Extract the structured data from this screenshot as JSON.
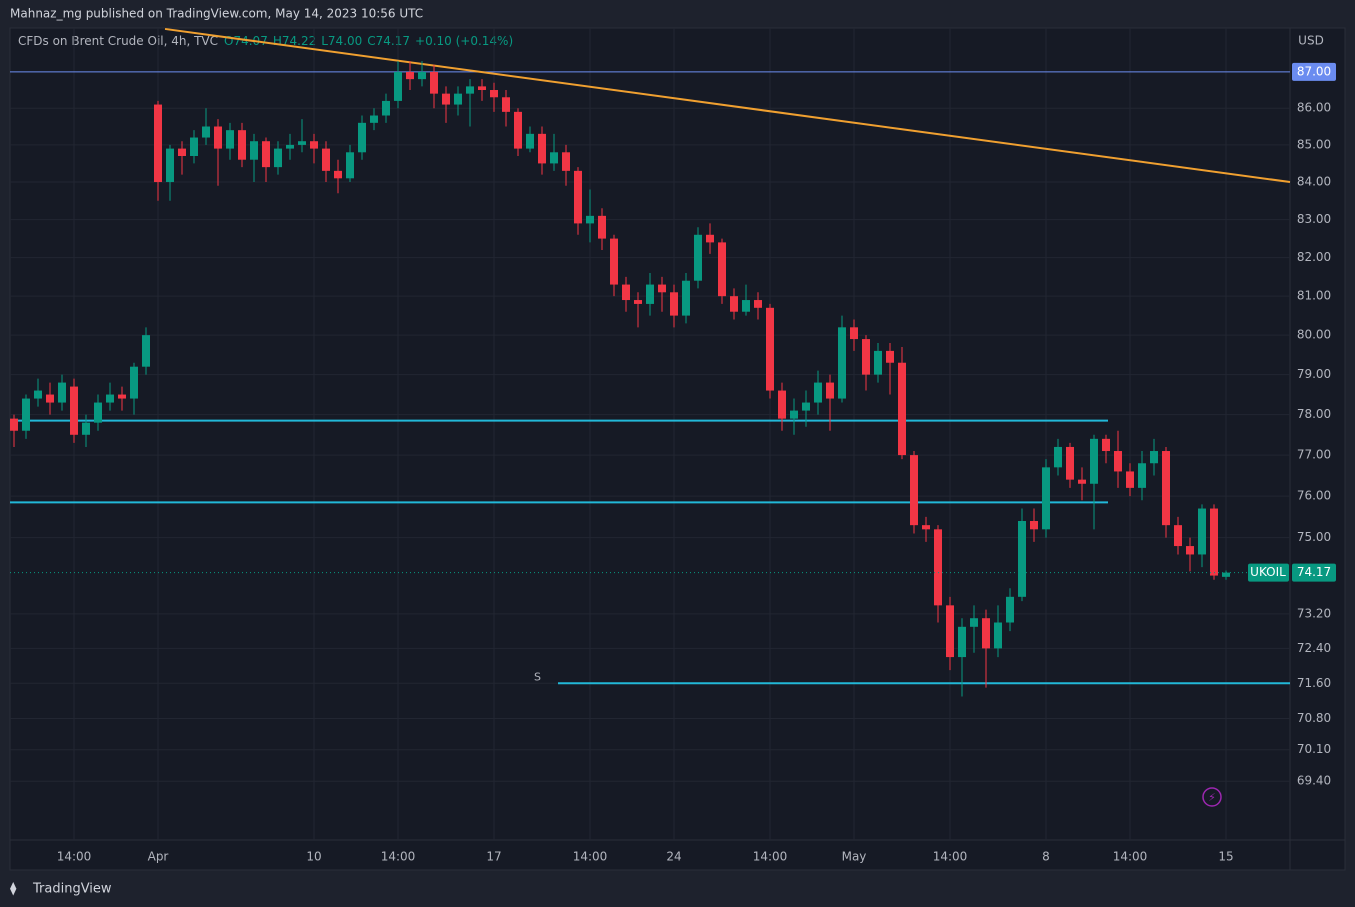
{
  "header": {
    "published": "Mahnaz_mg published on TradingView.com, May 14, 2023 10:56 UTC",
    "footer": "TradingView"
  },
  "chart_data": {
    "type": "candlestick",
    "title": "CFDs on Brent Crude Oil, 4h, TVC",
    "legend_values": [
      "O74.07",
      "H74.22",
      "L74.00",
      "C74.17",
      "+0.10 (+0.14%)"
    ],
    "currency": "USD",
    "symbol": "UKOIL",
    "categories": [
      null,
      null,
      null,
      null,
      null,
      "14:00",
      null,
      null,
      null,
      null,
      null,
      null,
      "Apr",
      null,
      null,
      null,
      null,
      null,
      null,
      null,
      null,
      null,
      null,
      null,
      null,
      "10",
      null,
      null,
      null,
      null,
      null,
      null,
      "14:00",
      null,
      null,
      null,
      null,
      null,
      null,
      null,
      "17",
      null,
      null,
      null,
      null,
      null,
      null,
      null,
      "14:00",
      null,
      null,
      null,
      null,
      null,
      null,
      "24",
      null,
      null,
      null,
      null,
      null,
      null,
      null,
      "14:00",
      null,
      null,
      null,
      null,
      null,
      null,
      "May",
      null,
      null,
      null,
      null,
      null,
      null,
      null,
      "14:00",
      null,
      null,
      null,
      null,
      null,
      null,
      null,
      "8",
      null,
      null,
      null,
      null,
      null,
      null,
      "14:00",
      null,
      null,
      null,
      null,
      null,
      null,
      null,
      "15"
    ],
    "open": [
      77.9,
      77.6,
      78.4,
      78.5,
      78.3,
      78.7,
      77.5,
      77.8,
      78.3,
      78.5,
      78.4,
      79.2,
      86.1,
      84.0,
      84.9,
      84.7,
      85.2,
      85.5,
      84.9,
      85.4,
      84.6,
      85.1,
      84.4,
      84.9,
      85.0,
      85.1,
      84.9,
      84.3,
      84.1,
      84.8,
      85.6,
      85.8,
      86.2,
      87.0,
      86.8,
      87.0,
      86.4,
      86.1,
      86.4,
      86.6,
      86.5,
      86.3,
      85.9,
      84.9,
      85.3,
      84.5,
      84.8,
      84.3,
      82.9,
      83.1,
      82.5,
      81.3,
      80.9,
      80.8,
      81.3,
      81.1,
      80.5,
      81.4,
      82.6,
      82.4,
      81.0,
      80.6,
      80.9,
      80.7,
      78.6,
      77.9,
      78.1,
      78.3,
      78.8,
      78.4,
      80.2,
      79.9,
      79.0,
      79.6,
      79.3,
      77.0,
      75.3,
      75.2,
      73.4,
      72.2,
      72.9,
      73.1,
      72.4,
      73.0,
      73.6,
      75.4,
      75.2,
      76.7,
      77.2,
      76.4,
      76.3,
      77.4,
      77.1,
      76.6,
      76.2,
      76.8,
      77.1,
      75.3,
      74.8,
      74.6,
      75.7,
      74.07
    ],
    "high": [
      78.0,
      78.5,
      78.9,
      78.8,
      79.0,
      78.9,
      78.0,
      78.5,
      78.8,
      78.7,
      79.3,
      80.2,
      86.2,
      85.0,
      85.1,
      85.4,
      86.0,
      85.7,
      85.6,
      85.6,
      85.3,
      85.2,
      85.1,
      85.3,
      85.7,
      85.3,
      85.1,
      84.6,
      85.0,
      85.8,
      86.0,
      86.4,
      87.3,
      87.3,
      87.3,
      87.2,
      86.6,
      86.6,
      86.8,
      86.8,
      86.7,
      86.5,
      86.0,
      85.5,
      85.5,
      85.3,
      85.0,
      84.4,
      83.8,
      83.3,
      82.6,
      81.5,
      81.1,
      81.6,
      81.5,
      81.3,
      81.6,
      82.8,
      82.9,
      82.5,
      81.2,
      81.3,
      81.1,
      80.8,
      78.8,
      78.4,
      78.6,
      79.1,
      79.0,
      80.5,
      80.4,
      80.0,
      79.8,
      79.8,
      79.7,
      77.1,
      75.5,
      75.3,
      73.6,
      73.1,
      73.4,
      73.3,
      73.4,
      73.8,
      75.7,
      75.7,
      76.9,
      77.4,
      77.3,
      76.7,
      77.5,
      77.5,
      77.6,
      76.8,
      77.1,
      77.4,
      77.2,
      75.5,
      75.0,
      75.8,
      75.8,
      74.22
    ],
    "low": [
      77.2,
      77.4,
      78.2,
      78.0,
      78.1,
      77.3,
      77.2,
      77.6,
      78.1,
      78.1,
      78.0,
      79.0,
      83.5,
      83.5,
      84.2,
      84.5,
      85.0,
      83.9,
      84.6,
      84.4,
      84.0,
      84.0,
      84.2,
      84.6,
      84.8,
      84.5,
      84.0,
      83.7,
      84.0,
      84.6,
      85.4,
      85.6,
      86.0,
      86.5,
      86.6,
      86.0,
      85.6,
      85.8,
      85.5,
      86.2,
      85.9,
      85.5,
      84.7,
      84.8,
      84.2,
      84.3,
      83.9,
      82.6,
      82.4,
      82.2,
      81.0,
      80.6,
      80.2,
      80.5,
      80.6,
      80.2,
      80.3,
      81.2,
      82.1,
      80.8,
      80.4,
      80.5,
      80.4,
      78.4,
      77.6,
      77.5,
      77.7,
      78.0,
      77.6,
      78.3,
      79.6,
      78.6,
      78.8,
      78.5,
      76.9,
      75.1,
      74.9,
      73.0,
      71.9,
      71.3,
      72.3,
      71.5,
      72.2,
      72.8,
      73.5,
      74.9,
      75.0,
      76.5,
      76.2,
      75.9,
      75.2,
      76.8,
      76.2,
      76.0,
      75.9,
      76.5,
      75.0,
      74.6,
      74.2,
      74.3,
      74.0,
      74.0
    ],
    "close": [
      77.6,
      78.4,
      78.6,
      78.3,
      78.8,
      77.5,
      77.8,
      78.3,
      78.5,
      78.4,
      79.2,
      80.0,
      84.0,
      84.9,
      84.7,
      85.2,
      85.5,
      84.9,
      85.4,
      84.6,
      85.1,
      84.4,
      84.9,
      85.0,
      85.1,
      84.9,
      84.3,
      84.1,
      84.8,
      85.6,
      85.8,
      86.2,
      87.0,
      86.8,
      87.0,
      86.4,
      86.1,
      86.4,
      86.6,
      86.5,
      86.3,
      85.9,
      84.9,
      85.3,
      84.5,
      84.8,
      84.3,
      82.9,
      83.1,
      82.5,
      81.3,
      80.9,
      80.8,
      81.3,
      81.1,
      80.5,
      81.4,
      82.6,
      82.4,
      81.0,
      80.6,
      80.9,
      80.7,
      78.6,
      77.9,
      78.1,
      78.3,
      78.8,
      78.4,
      80.2,
      79.9,
      79.0,
      79.6,
      79.3,
      77.0,
      75.3,
      75.2,
      73.4,
      72.2,
      72.9,
      73.1,
      72.4,
      73.0,
      73.6,
      75.4,
      75.2,
      76.7,
      77.2,
      76.4,
      76.3,
      77.4,
      77.1,
      76.6,
      76.2,
      76.8,
      77.1,
      75.3,
      74.8,
      74.6,
      75.7,
      74.1,
      74.17
    ],
    "up_color": "#089981",
    "down_color": "#f23645",
    "ylim": [
      68.81,
      88.17
    ],
    "log_scale": true,
    "grid": true,
    "yticks": [
      {
        "value": 87,
        "label": "87.00"
      },
      {
        "value": 86,
        "label": "86.00"
      },
      {
        "value": 85,
        "label": "85.00"
      },
      {
        "value": 84,
        "label": "84.00"
      },
      {
        "value": 83,
        "label": "83.00"
      },
      {
        "value": 82,
        "label": "82.00"
      },
      {
        "value": 81,
        "label": "81.00"
      },
      {
        "value": 80,
        "label": "80.00"
      },
      {
        "value": 79,
        "label": "79.00"
      },
      {
        "value": 78,
        "label": "78.00"
      },
      {
        "value": 77,
        "label": "77.00"
      },
      {
        "value": 76,
        "label": "76.00"
      },
      {
        "value": 75,
        "label": "75.00"
      },
      {
        "value": 73.2,
        "label": "73.20"
      },
      {
        "value": 72.4,
        "label": "72.40"
      },
      {
        "value": 71.6,
        "label": "71.60"
      },
      {
        "value": 70.8,
        "label": "70.80"
      },
      {
        "value": 70.1,
        "label": "70.10"
      },
      {
        "value": 69.4,
        "label": "69.40"
      }
    ],
    "trendline": {
      "color": "#f0a030",
      "values": [
        88.2,
        84.0
      ]
    },
    "levels": [
      {
        "value": 87,
        "color": "#6b8cf0"
      },
      {
        "value": 77.85,
        "color": "#22b8d8"
      },
      {
        "value": 75.85,
        "color": "#22b8d8"
      },
      {
        "value": 71.6,
        "color": "#22b8d8",
        "label": "S"
      }
    ]
  }
}
